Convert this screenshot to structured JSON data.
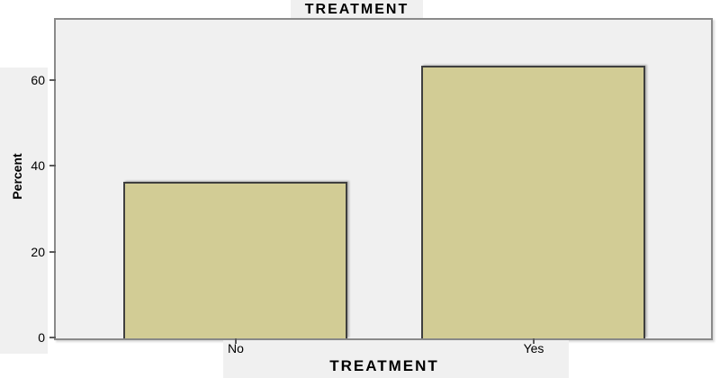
{
  "chart_data": {
    "type": "bar",
    "title": "TREATMENT",
    "xlabel": "TREATMENT",
    "ylabel": "Percent",
    "categories": [
      "No",
      "Yes"
    ],
    "values": [
      36.5,
      63.5
    ],
    "yticks": [
      0,
      20,
      40,
      60
    ],
    "ylim": [
      0,
      74
    ],
    "grid": false,
    "legend": "none",
    "colors": {
      "bar_fill": "#d2cc95",
      "bar_border": "#3f3f3f",
      "plot_background": "#f0f0f0",
      "label_band_background": "#f0f0f0",
      "figure_background": "#ffffff",
      "axis_frame": "#8a8a8a",
      "text": "#000000"
    }
  }
}
